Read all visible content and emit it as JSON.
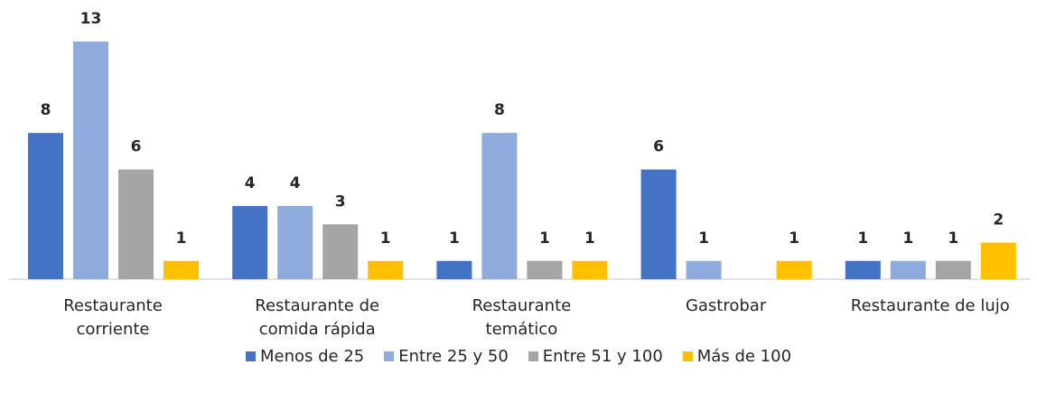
{
  "chart_data": {
    "type": "bar",
    "categories": [
      "Restaurante\ncorriente",
      "Restaurante de\ncomida rápida",
      "Restaurante\ntemático",
      "Gastrobar",
      "Restaurante de lujo"
    ],
    "series": [
      {
        "name": "Menos de 25",
        "color": "#4472c4",
        "values": [
          8,
          4,
          1,
          6,
          1
        ]
      },
      {
        "name": "Entre 25 y 50",
        "color": "#8faadc",
        "values": [
          13,
          4,
          8,
          1,
          1
        ]
      },
      {
        "name": "Entre 51 y 100",
        "color": "#a5a5a5",
        "values": [
          6,
          3,
          1,
          null,
          1
        ]
      },
      {
        "name": "Más de 100",
        "color": "#ffc000",
        "values": [
          1,
          1,
          1,
          1,
          2
        ]
      }
    ],
    "legend": "bottom"
  }
}
